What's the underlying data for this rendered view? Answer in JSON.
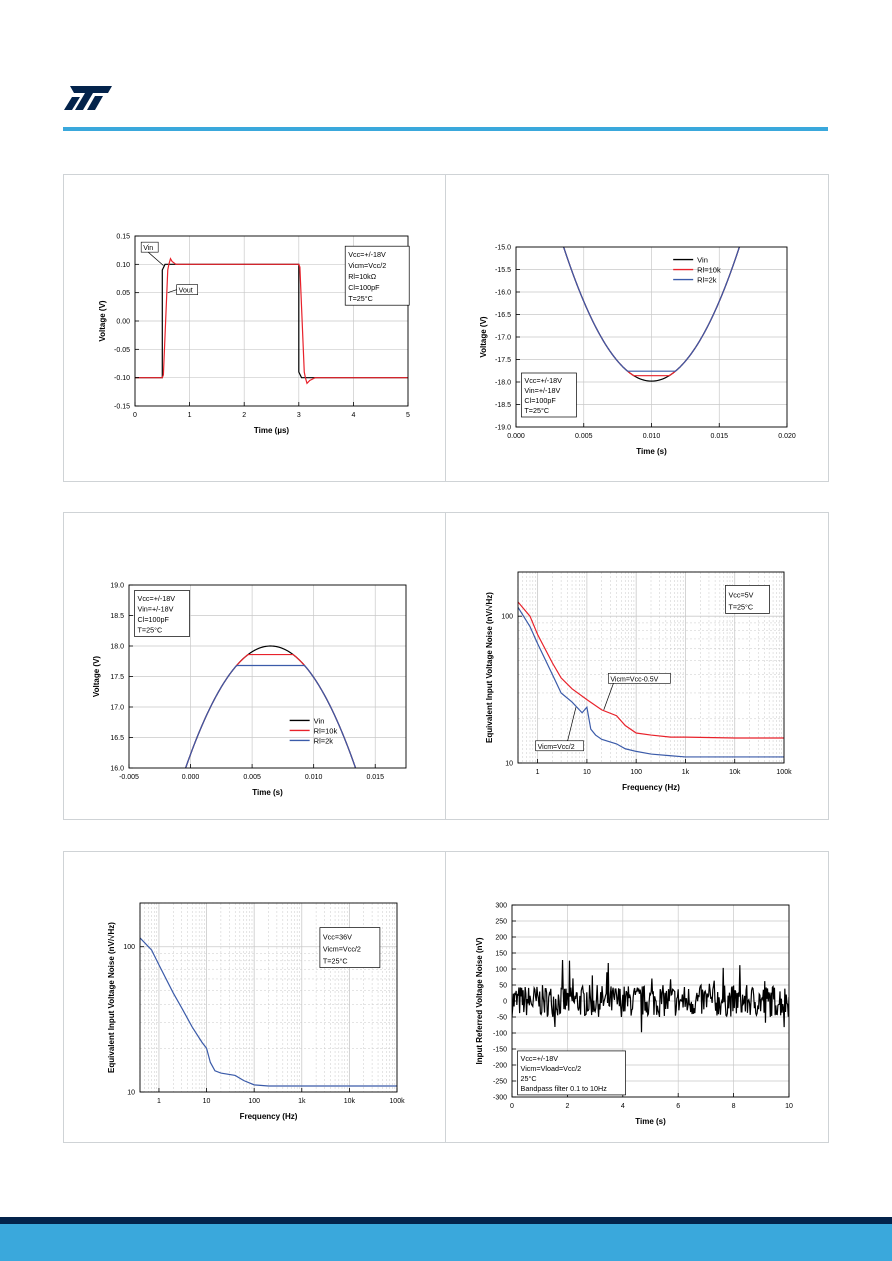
{
  "brand": {
    "logo_icon": "st-logo-icon",
    "accent": "#3aa8dc",
    "dark": "#03234b"
  },
  "chart_data": [
    {
      "id": "c1",
      "type": "line",
      "xlabel": "Time (µs)",
      "ylabel": "Voltage (V)",
      "xlim": [
        0,
        5
      ],
      "ylim": [
        -0.15,
        0.15
      ],
      "xticks": [
        0,
        1,
        2,
        3,
        4,
        5
      ],
      "xticklabels": [
        "0",
        "1",
        "2",
        "3",
        "4",
        "5"
      ],
      "yticks": [
        -0.15,
        -0.1,
        -0.05,
        0.0,
        0.05,
        0.1,
        0.15
      ],
      "yticklabels": [
        "-0.15",
        "-0.10",
        "-0.05",
        "0.00",
        "0.05",
        "0.10",
        "0.15"
      ],
      "grid": true,
      "annotation": [
        "Vcc=+/-18V",
        "Vicm=Vcc/2",
        "Rl=10kΩ",
        "Cl=100pF",
        "T=25°C"
      ],
      "labels": [
        "Vin",
        "Vout"
      ],
      "series": [
        {
          "name": "Vin",
          "color": "#000000",
          "x": [
            0,
            0.5,
            0.5,
            0.55,
            0.6,
            3.0,
            3.0,
            3.05,
            3.1,
            5
          ],
          "y": [
            -0.1,
            -0.1,
            0.09,
            0.1,
            0.1,
            0.1,
            -0.09,
            -0.1,
            -0.1,
            -0.1
          ]
        },
        {
          "name": "Vout",
          "color": "#e8222b",
          "x": [
            0,
            0.5,
            0.52,
            0.6,
            0.62,
            0.65,
            0.68,
            0.75,
            0.9,
            3.0,
            3.02,
            3.1,
            3.12,
            3.15,
            3.2,
            3.3,
            3.5,
            5
          ],
          "y": [
            -0.1,
            -0.1,
            -0.095,
            0.09,
            0.1,
            0.11,
            0.105,
            0.1,
            0.1,
            0.1,
            0.095,
            -0.09,
            -0.1,
            -0.11,
            -0.105,
            -0.1,
            -0.1,
            -0.1
          ]
        }
      ]
    },
    {
      "id": "c2",
      "type": "line",
      "xlabel": "Time (s)",
      "ylabel": "Voltage (V)",
      "xlim": [
        0,
        0.02
      ],
      "ylim": [
        -19.0,
        -15.0
      ],
      "xticks": [
        0,
        0.005,
        0.01,
        0.015,
        0.02
      ],
      "xticklabels": [
        "0.000",
        "0.005",
        "0.010",
        "0.015",
        "0.020"
      ],
      "yticks": [
        -19.0,
        -18.5,
        -18.0,
        -17.5,
        -17.0,
        -16.5,
        -16.0,
        -15.5,
        -15.0
      ],
      "yticklabels": [
        "-19.0",
        "-18.5",
        "-18.0",
        "-17.5",
        "-17.0",
        "-16.5",
        "-16.0",
        "-15.5",
        "-15.0"
      ],
      "grid": true,
      "annotation": [
        "Vcc=+/-18V",
        "Vin=+/-18V",
        "Cl=100pF",
        "T=25°C"
      ],
      "series": [
        {
          "name": "Vin",
          "color": "#000000",
          "model": "parabola",
          "center": 0.01,
          "peak": -17.98,
          "clip": null
        },
        {
          "name": "Rl=10k",
          "color": "#e8222b",
          "model": "parabola",
          "center": 0.01,
          "peak": -17.98,
          "clip": -17.86
        },
        {
          "name": "Rl=2k",
          "color": "#3b5ba9",
          "model": "parabola",
          "center": 0.01,
          "peak": -17.98,
          "clip": -17.76
        }
      ]
    },
    {
      "id": "c3",
      "type": "line",
      "xlabel": "Time (s)",
      "ylabel": "Voltage (V)",
      "xlim": [
        -0.005,
        0.0175
      ],
      "ylim": [
        16.0,
        19.0
      ],
      "xticks": [
        -0.005,
        0,
        0.005,
        0.01,
        0.015
      ],
      "xticklabels": [
        "-0.005",
        "0.000",
        "0.005",
        "0.010",
        "0.015"
      ],
      "yticks": [
        16.0,
        16.5,
        17.0,
        17.5,
        18.0,
        18.5,
        19.0
      ],
      "yticklabels": [
        "16.0",
        "16.5",
        "17.0",
        "17.5",
        "18.0",
        "18.5",
        "19.0"
      ],
      "grid": true,
      "annotation": [
        "Vcc=+/-18V",
        "Vin=+/-18V",
        "Cl=100pF",
        "T=25°C"
      ],
      "series": [
        {
          "name": "Vin",
          "color": "#000000",
          "model": "parabola",
          "center": 0.0065,
          "peak": 18.0,
          "clip": null
        },
        {
          "name": "Rl=10k",
          "color": "#e8222b",
          "model": "parabola",
          "center": 0.0065,
          "peak": 18.0,
          "clip": 17.86
        },
        {
          "name": "Rl=2k",
          "color": "#3b5ba9",
          "model": "parabola",
          "center": 0.0065,
          "peak": 18.0,
          "clip": 17.68
        }
      ]
    },
    {
      "id": "c4",
      "type": "line",
      "xlabel": "Frequency (Hz)",
      "ylabel": "Equivalent Input Voltage Noise (nV/√Hz)",
      "xscale": "log",
      "yscale": "log",
      "xlim": [
        0.4,
        100000
      ],
      "ylim": [
        10,
        200
      ],
      "xticks": [
        1,
        10,
        100,
        1000,
        10000,
        100000
      ],
      "xticklabels": [
        "1",
        "10",
        "100",
        "1k",
        "10k",
        "100k"
      ],
      "yticks": [
        10,
        100
      ],
      "yticklabels": [
        "10",
        "100"
      ],
      "grid": true,
      "annotation": [
        "Vcc=5V",
        "T=25°C"
      ],
      "labels": [
        "Vicm=Vcc-0.5V",
        "Vicm=Vcc/2"
      ],
      "series": [
        {
          "name": "Vicm=Vcc-0.5V",
          "color": "#e8222b",
          "x": [
            0.4,
            0.7,
            1,
            2,
            3,
            5,
            10,
            20,
            40,
            60,
            100,
            200,
            500,
            1000,
            10000,
            100000
          ],
          "y": [
            125,
            100,
            75,
            48,
            38,
            32,
            27,
            23,
            21,
            18,
            16,
            15.5,
            15,
            15,
            14.8,
            14.8
          ]
        },
        {
          "name": "Vicm=Vcc/2",
          "color": "#3b5ba9",
          "x": [
            0.4,
            0.7,
            1,
            2,
            3,
            5,
            8,
            10,
            12,
            15,
            20,
            40,
            60,
            100,
            200,
            500,
            1000,
            10000,
            100000
          ],
          "y": [
            115,
            85,
            65,
            40,
            30,
            26,
            22,
            24,
            17,
            15.5,
            14.5,
            13.5,
            12.5,
            12,
            11.5,
            11.2,
            11,
            11,
            11
          ]
        }
      ]
    },
    {
      "id": "c5",
      "type": "line",
      "xlabel": "Frequency (Hz)",
      "ylabel": "Equivalent Input Voltage Noise (nV/√Hz)",
      "xscale": "log",
      "yscale": "log",
      "xlim": [
        0.4,
        100000
      ],
      "ylim": [
        10,
        200
      ],
      "xticks": [
        1,
        10,
        100,
        1000,
        10000,
        100000
      ],
      "xticklabels": [
        "1",
        "10",
        "100",
        "1k",
        "10k",
        "100k"
      ],
      "yticks": [
        10,
        100
      ],
      "yticklabels": [
        "10",
        "100"
      ],
      "grid": true,
      "annotation": [
        "Vcc=36V",
        "Vicm=Vcc/2",
        "T=25°C"
      ],
      "series": [
        {
          "name": "",
          "color": "#3b5ba9",
          "x": [
            0.4,
            0.7,
            1,
            2,
            3,
            5,
            8,
            10,
            12,
            15,
            20,
            40,
            60,
            100,
            200,
            500,
            1000,
            10000,
            100000
          ],
          "y": [
            115,
            95,
            75,
            48,
            38,
            28,
            22,
            20,
            16,
            14,
            13.5,
            13,
            12,
            11.2,
            11,
            11,
            11,
            11,
            11
          ]
        }
      ]
    },
    {
      "id": "c6",
      "type": "line",
      "xlabel": "Time (s)",
      "ylabel": "Input Referred Voltage Noise (nV)",
      "xlim": [
        0,
        10
      ],
      "ylim": [
        -300,
        300
      ],
      "xticks": [
        0,
        2,
        4,
        6,
        8,
        10
      ],
      "xticklabels": [
        "0",
        "2",
        "4",
        "6",
        "8",
        "10"
      ],
      "yticks": [
        -300,
        -250,
        -200,
        -150,
        -100,
        -50,
        0,
        50,
        100,
        150,
        200,
        250,
        300
      ],
      "yticklabels": [
        "-300",
        "-250",
        "-200",
        "-150",
        "-100",
        "-50",
        "0",
        "50",
        "100",
        "150",
        "200",
        "250",
        "300"
      ],
      "grid": true,
      "annotation": [
        "Vcc=+/-18V",
        "Vicm=Vload=Vcc/2",
        "25°C",
        "Bandpass filter 0.1 to 10Hz"
      ],
      "series": [
        {
          "name": "",
          "color": "#000000",
          "model": "noise",
          "amplitude": 50,
          "samples": 400,
          "seed": 7
        }
      ]
    }
  ]
}
